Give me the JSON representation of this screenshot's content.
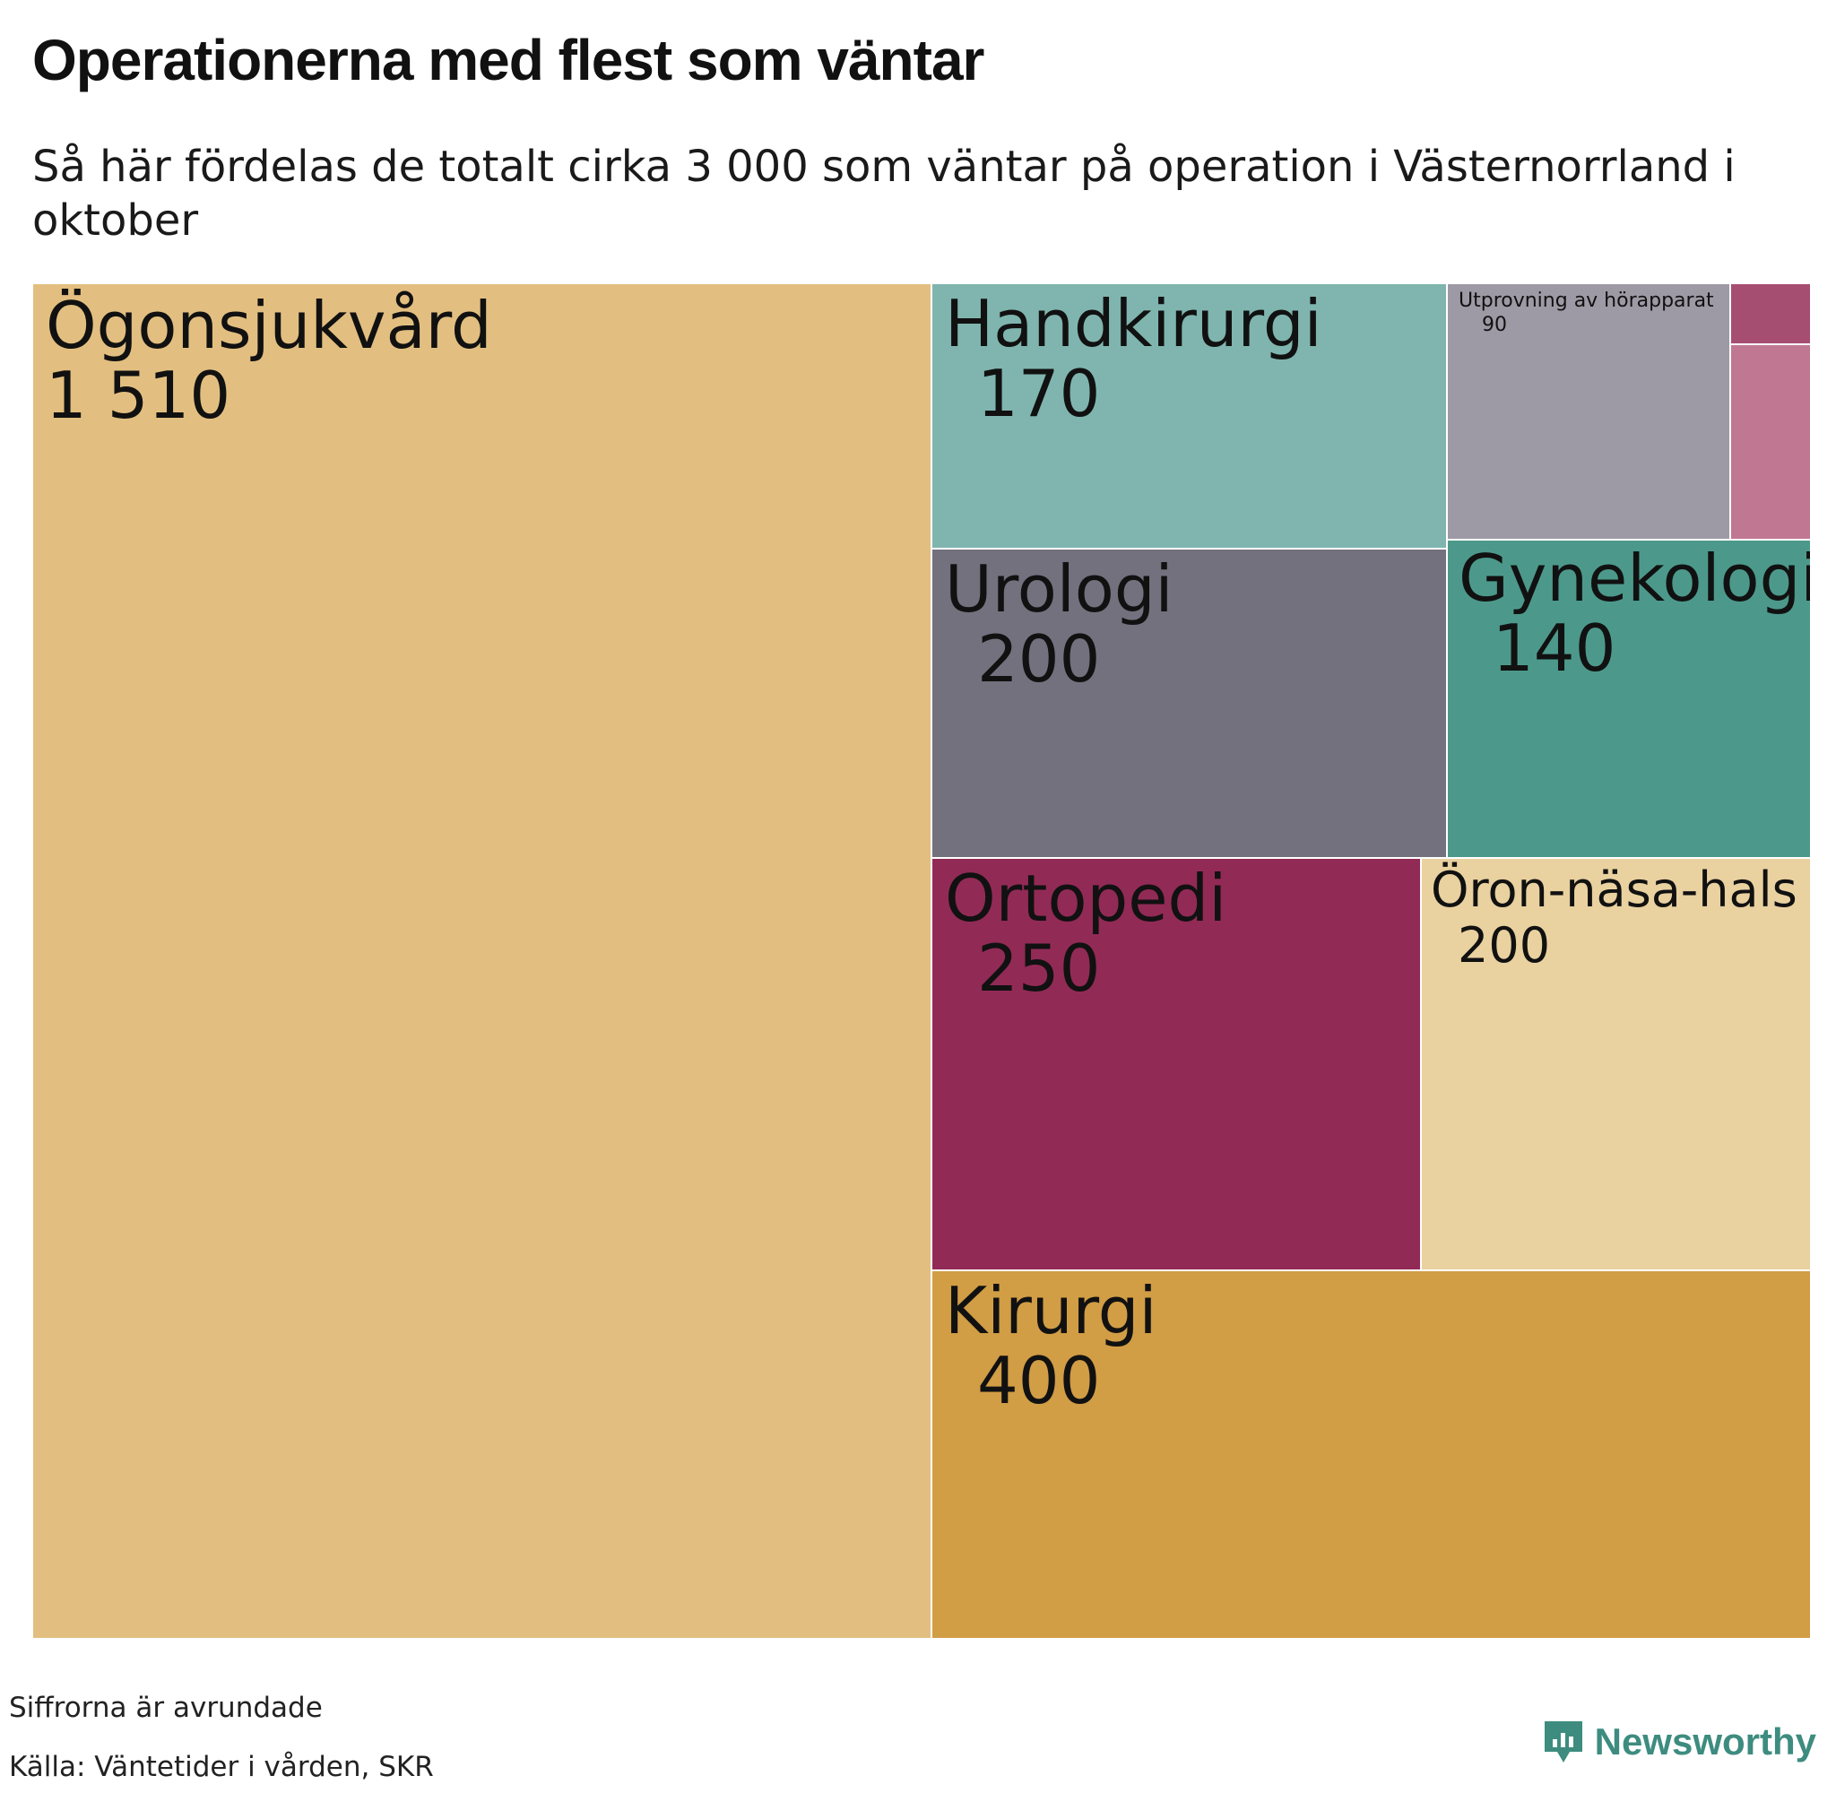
{
  "title": "Operationerna med flest som väntar",
  "subtitle": "Så här fördelas de totalt cirka 3 000 som väntar på operation i Västernorrland i oktober",
  "notes": {
    "rounding": "Siffrorna är avrundade",
    "source": "Källa: Väntetider i vården, SKR"
  },
  "brand": {
    "name": "Newsworthy",
    "icon": "newsworthy-logo-icon",
    "color": "#3d8c7f"
  },
  "chart_data": {
    "type": "treemap",
    "title": "Operationerna med flest som väntar",
    "subtitle": "Så här fördelas de totalt cirka 3 000 som väntar på operation i Västernorrland i oktober",
    "items": [
      {
        "name": "Ögonsjukvård",
        "value": "1 510",
        "color": "#e2bf80"
      },
      {
        "name": "Handkirurgi",
        "value": "170",
        "color": "#7fb5ae"
      },
      {
        "name": "Utprovning av hörapparat",
        "value": "90",
        "color": "#9e9aa5"
      },
      {
        "name": "",
        "value": "",
        "color": "#a64e72"
      },
      {
        "name": "",
        "value": "",
        "color": "#c07892"
      },
      {
        "name": "Urologi",
        "value": "200",
        "color": "#74717e"
      },
      {
        "name": "Gynekologi",
        "value": "140",
        "color": "#4c998b"
      },
      {
        "name": "Ortopedi",
        "value": "250",
        "color": "#922a56"
      },
      {
        "name": "Öron-näsa-hals",
        "value": "200",
        "color": "#e9d1a0"
      },
      {
        "name": "Kirurgi",
        "value": "400",
        "color": "#d19d45"
      }
    ]
  }
}
